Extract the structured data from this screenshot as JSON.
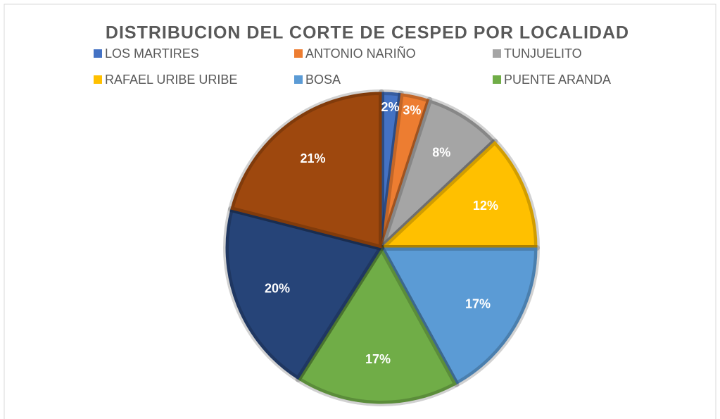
{
  "chart_data": {
    "type": "pie",
    "title": "DISTRIBUCION DEL CORTE DE CESPED POR LOCALIDAD",
    "categories": [
      "LOS MARTIRES",
      "ANTONIO NARIÑO",
      "TUNJUELITO",
      "RAFAEL URIBE URIBE",
      "BOSA",
      "PUENTE ARANDA",
      null,
      null
    ],
    "values": [
      2,
      3,
      8,
      12,
      17,
      17,
      20,
      21
    ],
    "value_labels": [
      "2%",
      "3%",
      "8%",
      "12%",
      "17%",
      "17%",
      "20%",
      "21%"
    ],
    "colors": [
      "#4472c4",
      "#ed7d31",
      "#a5a5a5",
      "#ffc000",
      "#5b9bd5",
      "#70ad47",
      "#264478",
      "#9e480e"
    ]
  }
}
